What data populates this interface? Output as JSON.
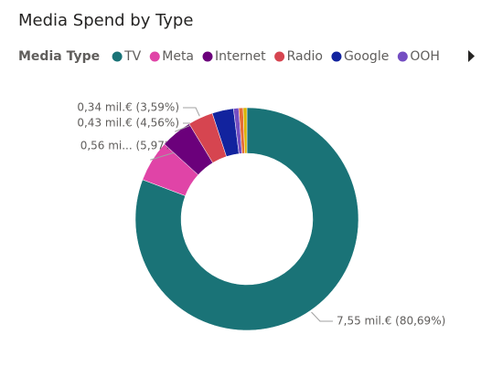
{
  "chart_data": {
    "type": "donut",
    "title": "Media Spend by Type",
    "legend_title": "Media Type",
    "categories": [
      "TV",
      "Meta",
      "Internet",
      "Radio",
      "Google",
      "OOH",
      null,
      null
    ],
    "values": [
      7.55,
      0.56,
      0.43,
      0.34,
      0.29,
      0.07,
      0.06,
      0.05
    ],
    "value_labels": [
      "7,55 mil.€ (80,69%)",
      "0,56 mi... (5,97%)",
      "0,43 mil.€ (4,56%)",
      "0,34 mil.€ (3,59%)",
      null,
      null,
      null,
      null
    ],
    "colors": [
      "#1a7377",
      "#e044a7",
      "#6b007b",
      "#d64550",
      "#12239e",
      "#744ec2",
      "#e66c37",
      "#d9b300"
    ]
  }
}
